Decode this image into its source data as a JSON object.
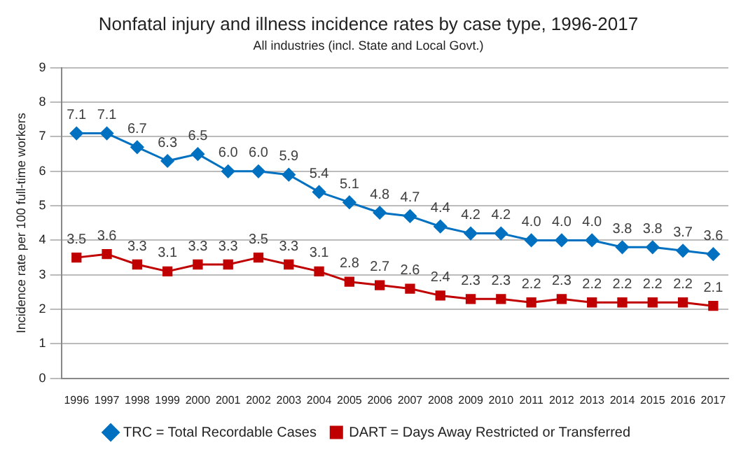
{
  "chart_data": {
    "type": "line",
    "title": "Nonfatal injury and illness incidence rates by case type, 1996-2017",
    "subtitle": "All industries (incl. State and Local Govt.)",
    "ylabel": "Incidence rate per 100 full-time workers",
    "categories": [
      "1996",
      "1997",
      "1998",
      "1999",
      "2000",
      "2001",
      "2002",
      "2003",
      "2004",
      "2005",
      "2006",
      "2007",
      "2008",
      "2009",
      "2010",
      "2011",
      "2012",
      "2013",
      "2014",
      "2015",
      "2016",
      "2017"
    ],
    "series": [
      {
        "name": "TRC = Total Recordable Cases",
        "color": "#0070c0",
        "marker": "diamond",
        "values": [
          7.1,
          7.1,
          6.7,
          6.3,
          6.5,
          6.0,
          6.0,
          5.9,
          5.4,
          5.1,
          4.8,
          4.7,
          4.4,
          4.2,
          4.2,
          4.0,
          4.0,
          4.0,
          3.8,
          3.8,
          3.7,
          3.6
        ],
        "value_labels": [
          "7.1",
          "7.1",
          "6.7",
          "6.3",
          "6.5",
          "6.0",
          "6.0",
          "5.9",
          "5.4",
          "5.1",
          "4.8",
          "4.7",
          "4.4",
          "4.2",
          "4.2",
          "4.0",
          "4.0",
          "4.0",
          "3.8",
          "3.8",
          "3.7",
          "3.6"
        ]
      },
      {
        "name": "DART = Days Away Restricted or Transferred",
        "color": "#c00000",
        "marker": "square",
        "values": [
          3.5,
          3.6,
          3.3,
          3.1,
          3.3,
          3.3,
          3.5,
          3.3,
          3.1,
          2.8,
          2.7,
          2.6,
          2.4,
          2.3,
          2.3,
          2.2,
          2.3,
          2.2,
          2.2,
          2.2,
          2.2,
          2.1
        ],
        "value_labels": [
          "3.5",
          "3.6",
          "3.3",
          "3.1",
          "3.3",
          "3.3",
          "3.5",
          "3.3",
          "3.1",
          "2.8",
          "2.7",
          "2.6",
          "2.4",
          "2.3",
          "2.3",
          "2.2",
          "2.3",
          "2.2",
          "2.2",
          "2.2",
          "2.2",
          "2.1"
        ]
      }
    ],
    "ylim": [
      0,
      9
    ],
    "yticks": [
      0,
      1,
      2,
      3,
      4,
      5,
      6,
      7,
      8,
      9
    ],
    "grid": "y",
    "legend": "bottom",
    "line_style": "solid"
  }
}
